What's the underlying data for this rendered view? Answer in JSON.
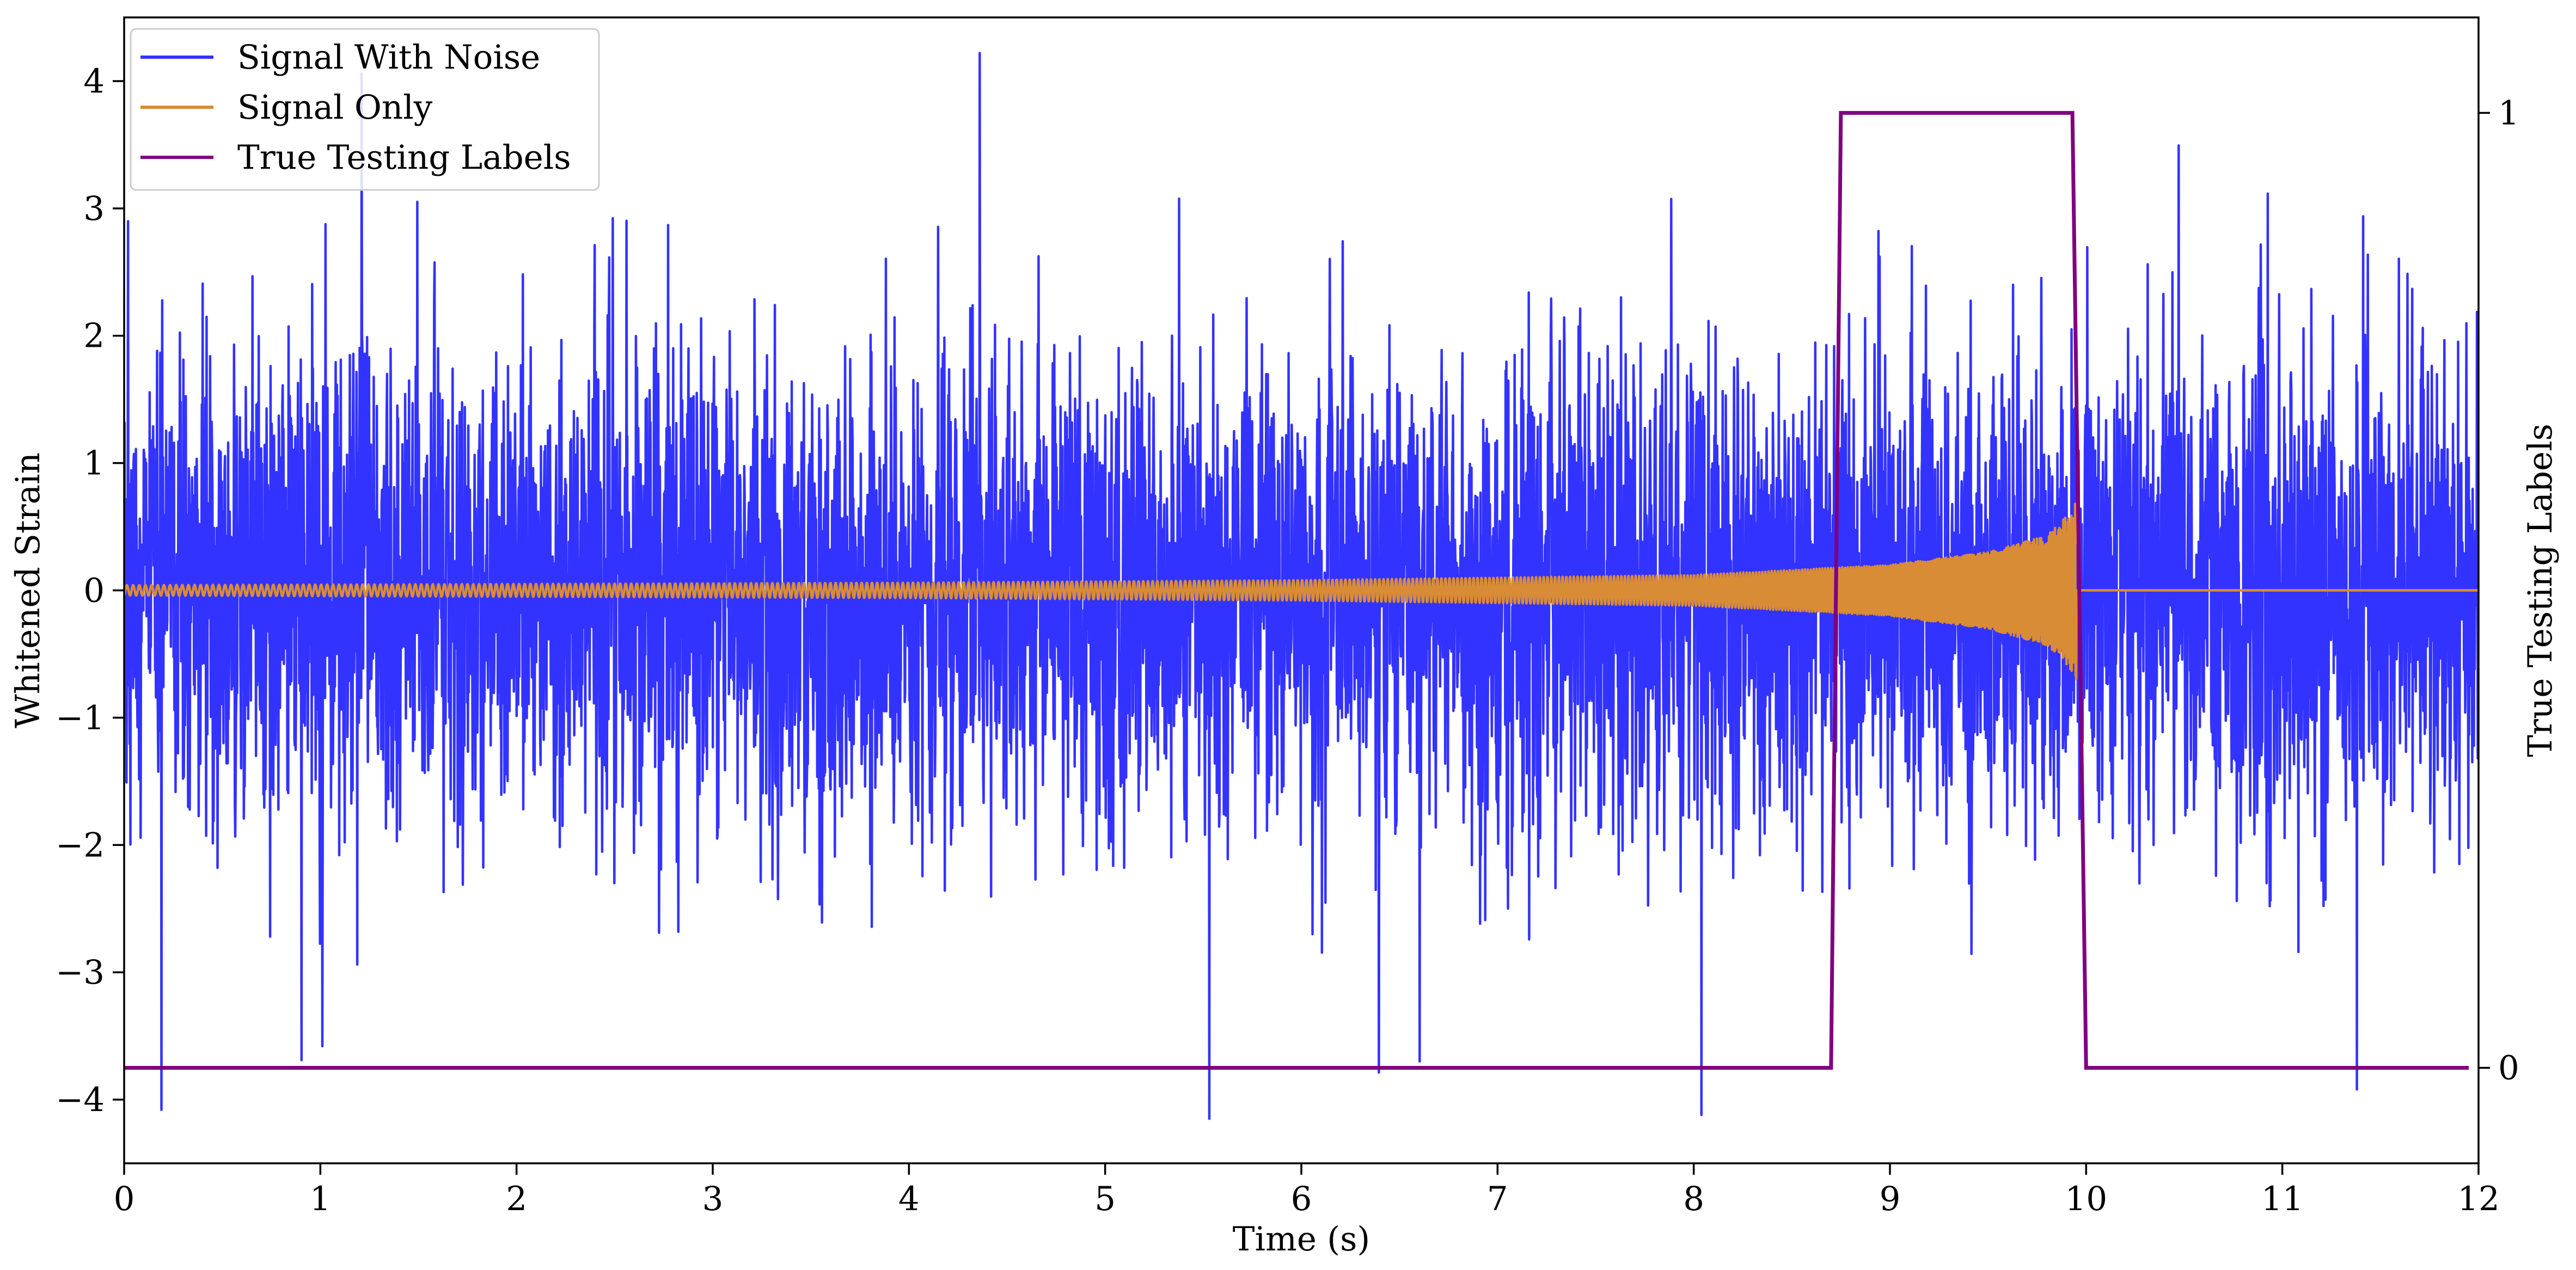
{
  "chart_data": {
    "type": "line",
    "title": "",
    "xlabel": "Time (s)",
    "ylabel": "Whitened Strain",
    "y2label": "True Testing Labels",
    "xlim": [
      0,
      12
    ],
    "ylim": [
      -4.5,
      4.5
    ],
    "y2lim": [
      -0.1,
      1.1
    ],
    "x_ticks": [
      0,
      1,
      2,
      3,
      4,
      5,
      6,
      7,
      8,
      9,
      10,
      11,
      12
    ],
    "x_tick_labels": [
      "0",
      "1",
      "2",
      "3",
      "4",
      "5",
      "6",
      "7",
      "8",
      "9",
      "10",
      "11",
      "12"
    ],
    "y_ticks": [
      -4,
      -3,
      -2,
      -1,
      0,
      1,
      2,
      3,
      4
    ],
    "y_tick_labels": [
      "−4",
      "−3",
      "−2",
      "−1",
      "0",
      "1",
      "2",
      "3",
      "4"
    ],
    "y2_ticks": [
      0,
      1
    ],
    "y2_tick_labels": [
      "0",
      "1"
    ],
    "grid": false,
    "legend_position": "top-left",
    "series": [
      {
        "name": "Signal With Noise",
        "color": "#3333ff",
        "axis": "left",
        "kind": "noise",
        "x_range": [
          0,
          12
        ],
        "mean": 0.0,
        "typical_range": [
          -2.2,
          2.2
        ],
        "x_points": [
          0.02,
          0.19,
          1.01,
          1.21,
          4.36,
          5.53,
          8.04,
          11.38
        ],
        "y_points": [
          2.9,
          -4.08,
          -3.58,
          4.06,
          4.22,
          -4.15,
          -4.12,
          -3.92
        ]
      },
      {
        "name": "Signal Only",
        "color": "#d98c36",
        "axis": "left",
        "kind": "chirp",
        "x_range": [
          0,
          12
        ],
        "merger_time": 9.95,
        "x_points": [
          0,
          4,
          6,
          8,
          9,
          9.5,
          9.8,
          9.9,
          9.95,
          10.0,
          12
        ],
        "amplitude_points": [
          0.04,
          0.06,
          0.08,
          0.12,
          0.2,
          0.3,
          0.43,
          0.58,
          0.7,
          0.0,
          0.0
        ]
      },
      {
        "name": "True Testing Labels",
        "color": "#800080",
        "axis": "right",
        "kind": "step",
        "x": [
          0,
          8.7,
          8.75,
          9.93,
          10.0,
          11.95
        ],
        "y": [
          0,
          0,
          1,
          1,
          0,
          0
        ]
      }
    ]
  }
}
